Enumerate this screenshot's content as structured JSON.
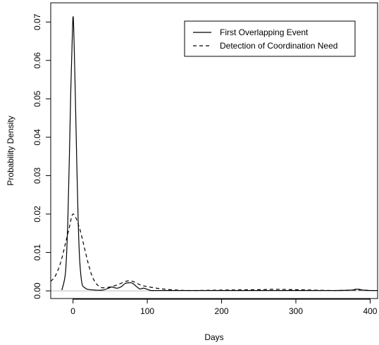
{
  "chart_data": {
    "type": "line",
    "title": "",
    "xlabel": "Days",
    "ylabel": "Probability Density",
    "xlim": [
      -30,
      410
    ],
    "ylim": [
      -0.002,
      0.075
    ],
    "xticks": [
      0,
      100,
      200,
      300,
      400
    ],
    "yticks": [
      0.0,
      0.01,
      0.02,
      0.03,
      0.04,
      0.05,
      0.06,
      0.07
    ],
    "ytick_labels": [
      "0.00",
      "0.01",
      "0.02",
      "0.03",
      "0.04",
      "0.05",
      "0.06",
      "0.07"
    ],
    "reference_line_y": 0,
    "grid": false,
    "legend_position": "top-right",
    "series": [
      {
        "name": "First Overlapping Event",
        "line_style": "solid",
        "color": "#000000",
        "x": [
          -15,
          -10,
          -7,
          -5,
          -3,
          -1,
          0,
          1,
          3,
          5,
          7,
          9,
          12,
          16,
          20,
          30,
          40,
          48,
          52,
          56,
          60,
          65,
          70,
          75,
          80,
          85,
          90,
          95,
          100,
          105,
          110,
          120,
          150,
          200,
          250,
          300,
          350,
          375,
          380,
          385,
          390,
          400,
          410
        ],
        "y": [
          0.0002,
          0.005,
          0.018,
          0.034,
          0.052,
          0.066,
          0.0713,
          0.068,
          0.052,
          0.034,
          0.018,
          0.008,
          0.002,
          0.0008,
          0.0004,
          0.0002,
          0.0002,
          0.0007,
          0.001,
          0.0008,
          0.0007,
          0.0011,
          0.0019,
          0.0021,
          0.002,
          0.0012,
          0.0005,
          0.0007,
          0.0004,
          0.0001,
          0.0001,
          0.0001,
          0.0001,
          0.0001,
          0.0001,
          0.0001,
          0.0001,
          0.0002,
          0.0004,
          0.0004,
          0.0002,
          0.0001,
          0.0001
        ]
      },
      {
        "name": "Detection of Coordination Need",
        "line_style": "dashed",
        "color": "#000000",
        "x": [
          -30,
          -25,
          -20,
          -15,
          -10,
          -5,
          -2,
          0,
          2,
          5,
          10,
          15,
          20,
          25,
          30,
          35,
          40,
          50,
          60,
          70,
          75,
          80,
          85,
          90,
          100,
          120,
          140,
          160,
          200,
          250,
          270,
          300,
          350,
          380,
          390,
          400,
          410
        ],
        "y": [
          0.0025,
          0.0035,
          0.0055,
          0.0085,
          0.0125,
          0.0165,
          0.0192,
          0.02,
          0.0197,
          0.0185,
          0.0155,
          0.0115,
          0.0075,
          0.0042,
          0.0022,
          0.0012,
          0.0008,
          0.001,
          0.0016,
          0.0024,
          0.0026,
          0.0025,
          0.0021,
          0.0016,
          0.0011,
          0.0005,
          0.0002,
          0.0001,
          0.0002,
          0.0003,
          0.0004,
          0.0003,
          0.0001,
          0.0002,
          0.0002,
          0.0001,
          0.0001
        ]
      }
    ]
  }
}
